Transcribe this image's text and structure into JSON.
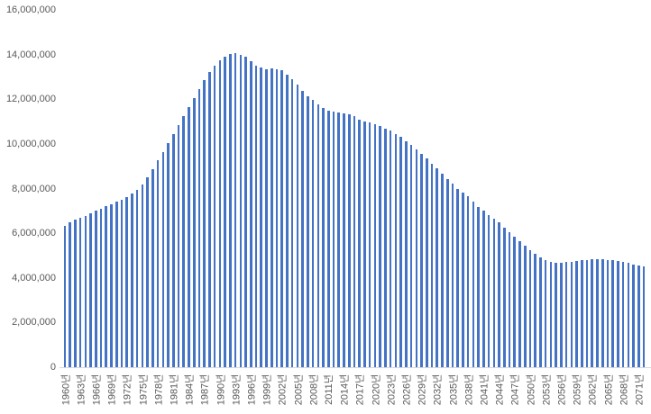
{
  "chart_data": {
    "type": "bar",
    "title": "",
    "xlabel": "",
    "ylabel": "",
    "legend": "none",
    "grid": "off",
    "bar_color": "#4472C4",
    "axis_line_color": "#D9D9D9",
    "tick_label_color": "#595959",
    "ylim": [
      0,
      16000000
    ],
    "ytick_step": 2000000,
    "ytick_labels": [
      "0",
      "2,000,000",
      "4,000,000",
      "6,000,000",
      "8,000,000",
      "10,000,000",
      "12,000,000",
      "14,000,000",
      "16,000,000"
    ],
    "xtick_every": 3,
    "xtick_labels_visible": [
      "1960년",
      "1963년",
      "1966년",
      "1969년",
      "1972년",
      "1975년",
      "1978년",
      "1981년",
      "1984년",
      "1987년",
      "1990년",
      "1993년",
      "1996년",
      "1999년",
      "2002년",
      "2005년",
      "2008년",
      "2011년",
      "2014년",
      "2017년",
      "2020년",
      "2023년",
      "2026년",
      "2029년",
      "2032년",
      "2035년",
      "2038년",
      "2041년",
      "2044년",
      "2047년",
      "2050년",
      "2053년",
      "2056년",
      "2059년",
      "2062년",
      "2065년",
      "2068년",
      "2071년"
    ],
    "categories": [
      "1960년",
      "1961년",
      "1962년",
      "1963년",
      "1964년",
      "1965년",
      "1966년",
      "1967년",
      "1968년",
      "1969년",
      "1970년",
      "1971년",
      "1972년",
      "1973년",
      "1974년",
      "1975년",
      "1976년",
      "1977년",
      "1978년",
      "1979년",
      "1980년",
      "1981년",
      "1982년",
      "1983년",
      "1984년",
      "1985년",
      "1986년",
      "1987년",
      "1988년",
      "1989년",
      "1990년",
      "1991년",
      "1992년",
      "1993년",
      "1994년",
      "1995년",
      "1996년",
      "1997년",
      "1998년",
      "1999년",
      "2000년",
      "2001년",
      "2002년",
      "2003년",
      "2004년",
      "2005년",
      "2006년",
      "2007년",
      "2008년",
      "2009년",
      "2010년",
      "2011년",
      "2012년",
      "2013년",
      "2014년",
      "2015년",
      "2016년",
      "2017년",
      "2018년",
      "2019년",
      "2020년",
      "2021년",
      "2022년",
      "2023년",
      "2024년",
      "2025년",
      "2026년",
      "2027년",
      "2028년",
      "2029년",
      "2030년",
      "2031년",
      "2032년",
      "2033년",
      "2034년",
      "2035년",
      "2036년",
      "2037년",
      "2038년",
      "2039년",
      "2040년",
      "2041년",
      "2042년",
      "2043년",
      "2044년",
      "2045년",
      "2046년",
      "2047년",
      "2048년",
      "2049년",
      "2050년",
      "2051년",
      "2052년",
      "2053년",
      "2054년",
      "2055년",
      "2056년",
      "2057년",
      "2058년",
      "2059년",
      "2060년",
      "2061년",
      "2062년",
      "2063년",
      "2064년",
      "2065년",
      "2066년",
      "2067년",
      "2068년",
      "2069년",
      "2070년",
      "2071년",
      "2072년"
    ],
    "values": [
      6320000,
      6480000,
      6590000,
      6700000,
      6790000,
      6900000,
      7000000,
      7100000,
      7210000,
      7310000,
      7410000,
      7510000,
      7630000,
      7760000,
      7950000,
      8190000,
      8500000,
      8850000,
      9250000,
      9650000,
      10050000,
      10450000,
      10850000,
      11250000,
      11650000,
      12050000,
      12450000,
      12850000,
      13200000,
      13500000,
      13750000,
      13920000,
      14020000,
      14060000,
      14000000,
      13890000,
      13700000,
      13520000,
      13420000,
      13350000,
      13400000,
      13350000,
      13300000,
      13100000,
      12900000,
      12650000,
      12380000,
      12150000,
      11950000,
      11750000,
      11600000,
      11500000,
      11450000,
      11410000,
      11370000,
      11320000,
      11240000,
      11100000,
      11000000,
      10980000,
      10900000,
      10800000,
      10700000,
      10580000,
      10450000,
      10300000,
      10120000,
      9950000,
      9750000,
      9550000,
      9350000,
      9120000,
      8900000,
      8650000,
      8420000,
      8220000,
      8000000,
      7820000,
      7650000,
      7420000,
      7180000,
      7000000,
      6820000,
      6650000,
      6470000,
      6260000,
      6050000,
      5840000,
      5630000,
      5430000,
      5230000,
      5060000,
      4920000,
      4810000,
      4730000,
      4670000,
      4670000,
      4700000,
      4730000,
      4760000,
      4790000,
      4810000,
      4830000,
      4840000,
      4830000,
      4810000,
      4790000,
      4760000,
      4720000,
      4660000,
      4600000,
      4550000,
      4500000
    ]
  }
}
